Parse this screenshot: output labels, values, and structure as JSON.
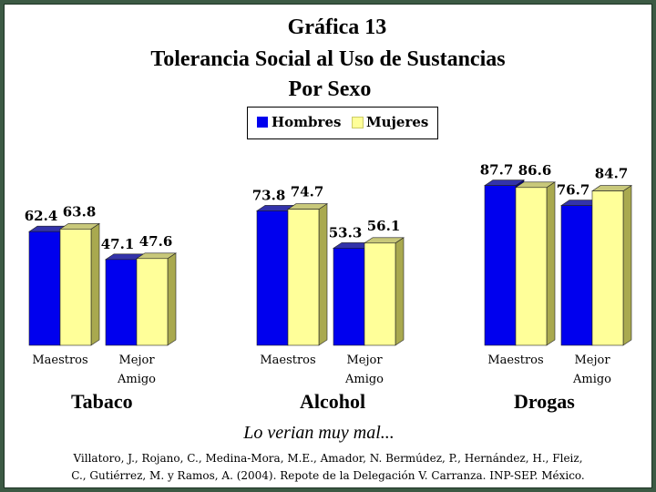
{
  "chart_data": {
    "type": "bar",
    "title": [
      "Gráfica 13",
      "Tolerancia Social al Uso de Sustancias",
      "Por Sexo"
    ],
    "groups": [
      "Tabaco",
      "Alcohol",
      "Drogas"
    ],
    "categories": [
      "Maestros",
      "Mejor Amigo"
    ],
    "category_lines": [
      [
        "Maestros"
      ],
      [
        "Mejor",
        "Amigo"
      ]
    ],
    "series": [
      {
        "name": "Hombres",
        "color": "#0000ee",
        "values": [
          [
            62.4,
            47.1
          ],
          [
            73.8,
            53.3
          ],
          [
            87.7,
            76.7
          ]
        ],
        "labels": [
          [
            "62.4",
            "47.1"
          ],
          [
            "73.8",
            "53.3"
          ],
          [
            "87.7",
            "76.7"
          ]
        ]
      },
      {
        "name": "Mujeres",
        "color": "#ffff99",
        "values": [
          [
            63.8,
            47.6
          ],
          [
            74.7,
            56.1
          ],
          [
            86.6,
            84.7
          ]
        ],
        "labels": [
          [
            "63.8",
            "47.6"
          ],
          [
            "74.7",
            "56.1"
          ],
          [
            "86.6",
            "84.7"
          ]
        ]
      }
    ],
    "ylim": [
      0,
      100
    ],
    "grid": false,
    "legend": "top-center",
    "note": "Lo verian muy mal...",
    "source": [
      "Villatoro, J., Rojano, C., Medina-Mora, M.E., Amador, N. Bermúdez, P., Hernández, H., Fleiz,",
      "C., Gutiérrez, M. y Ramos, A. (2004). Repote de la Delegación V. Carranza. INP-SEP. México."
    ]
  }
}
